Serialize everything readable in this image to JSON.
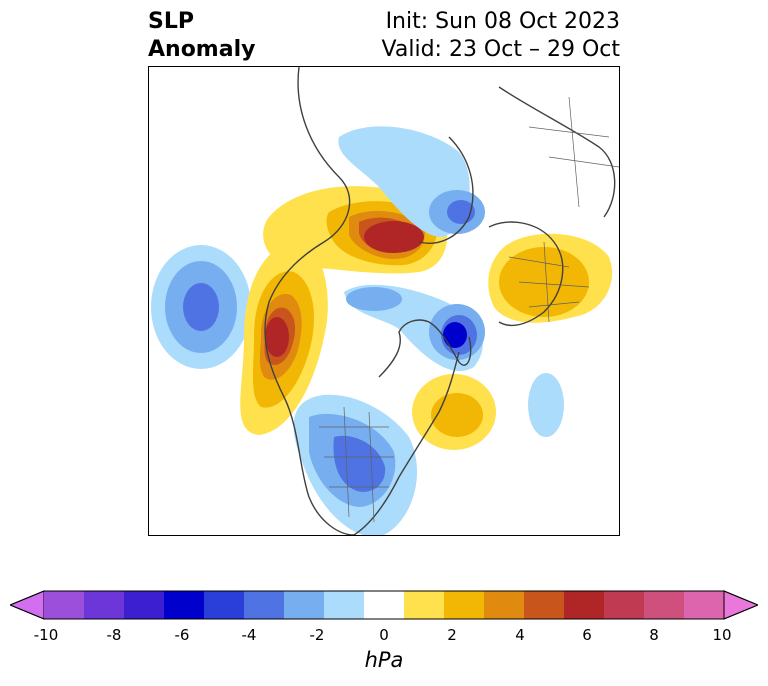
{
  "title": {
    "left_line1": "SLP",
    "left_line2": "Anomaly",
    "init": "Init: Sun 08 Oct 2023",
    "valid": "Valid: 23 Oct – 29 Oct"
  },
  "colorbar": {
    "unit": "hPa",
    "ticks": [
      "-10",
      "-8",
      "-6",
      "-4",
      "-2",
      "0",
      "2",
      "4",
      "6",
      "8",
      "10"
    ],
    "colors": [
      "#9b4fdb",
      "#6c36d9",
      "#3b1fd1",
      "#0000cc",
      "#2a3ed9",
      "#4f73e3",
      "#77aef0",
      "#acdcfb",
      "#ffffff",
      "#ffe14d",
      "#f2b705",
      "#e08b0f",
      "#c8561c",
      "#b02525",
      "#c03a52",
      "#cf4f7d",
      "#dd65ad"
    ],
    "under_color": "#d46ef0",
    "over_color": "#ea78db"
  },
  "map": {
    "projection": "polar stereographic, North Pole",
    "field": "sea level pressure anomaly"
  }
}
